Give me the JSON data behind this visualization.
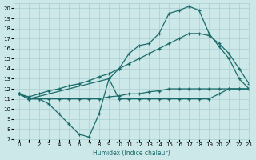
{
  "bg_color": "#cce8e8",
  "grid_color": "#aacfcf",
  "line_color": "#1a6b6b",
  "xlabel": "Humidex (Indice chaleur)",
  "xlim": [
    -0.5,
    23
  ],
  "ylim": [
    7,
    20.5
  ],
  "yticks": [
    7,
    8,
    9,
    10,
    11,
    12,
    13,
    14,
    15,
    16,
    17,
    18,
    19,
    20
  ],
  "xticks": [
    0,
    1,
    2,
    3,
    4,
    5,
    6,
    7,
    8,
    9,
    10,
    11,
    12,
    13,
    14,
    15,
    16,
    17,
    18,
    19,
    20,
    21,
    22,
    23
  ],
  "line1_x": [
    0,
    1,
    2,
    3,
    4,
    5,
    6,
    7,
    8,
    9,
    10,
    11,
    12,
    13,
    14,
    15,
    16,
    17,
    18,
    19,
    20,
    21,
    22,
    23
  ],
  "line1_y": [
    11.5,
    11.0,
    11.0,
    10.5,
    9.5,
    8.5,
    7.5,
    7.2,
    9.5,
    13.0,
    11.0,
    11.0,
    11.0,
    11.0,
    11.0,
    11.0,
    11.0,
    11.0,
    11.0,
    11.0,
    11.5,
    12.0,
    12.0,
    12.0
  ],
  "line2_x": [
    0,
    1,
    2,
    3,
    4,
    5,
    6,
    7,
    8,
    9,
    10,
    11,
    12,
    13,
    14,
    15,
    16,
    17,
    18,
    19,
    20,
    21,
    22,
    23
  ],
  "line2_y": [
    11.5,
    11.2,
    11.5,
    11.8,
    12.0,
    12.3,
    12.5,
    12.8,
    13.2,
    13.5,
    14.0,
    14.5,
    15.0,
    15.5,
    16.0,
    16.5,
    17.0,
    17.5,
    17.5,
    17.3,
    16.5,
    15.5,
    14.0,
    12.5
  ],
  "line3_x": [
    0,
    1,
    9,
    10,
    11,
    12,
    13,
    14,
    15,
    16,
    17,
    18,
    19,
    20,
    21,
    22,
    23
  ],
  "line3_y": [
    11.5,
    11.0,
    13.0,
    14.0,
    15.5,
    16.3,
    16.5,
    17.5,
    19.5,
    19.8,
    20.2,
    19.8,
    17.5,
    16.2,
    15.0,
    13.0,
    12.0
  ],
  "line4_x": [
    0,
    1,
    2,
    3,
    4,
    5,
    6,
    7,
    8,
    9,
    10,
    11,
    12,
    13,
    14,
    15,
    16,
    17,
    18,
    19,
    20,
    21,
    22,
    23
  ],
  "line4_y": [
    11.5,
    11.0,
    11.0,
    11.0,
    11.0,
    11.0,
    11.0,
    11.0,
    11.0,
    11.2,
    11.3,
    11.5,
    11.5,
    11.7,
    11.8,
    12.0,
    12.0,
    12.0,
    12.0,
    12.0,
    12.0,
    12.0,
    12.0,
    12.0
  ]
}
